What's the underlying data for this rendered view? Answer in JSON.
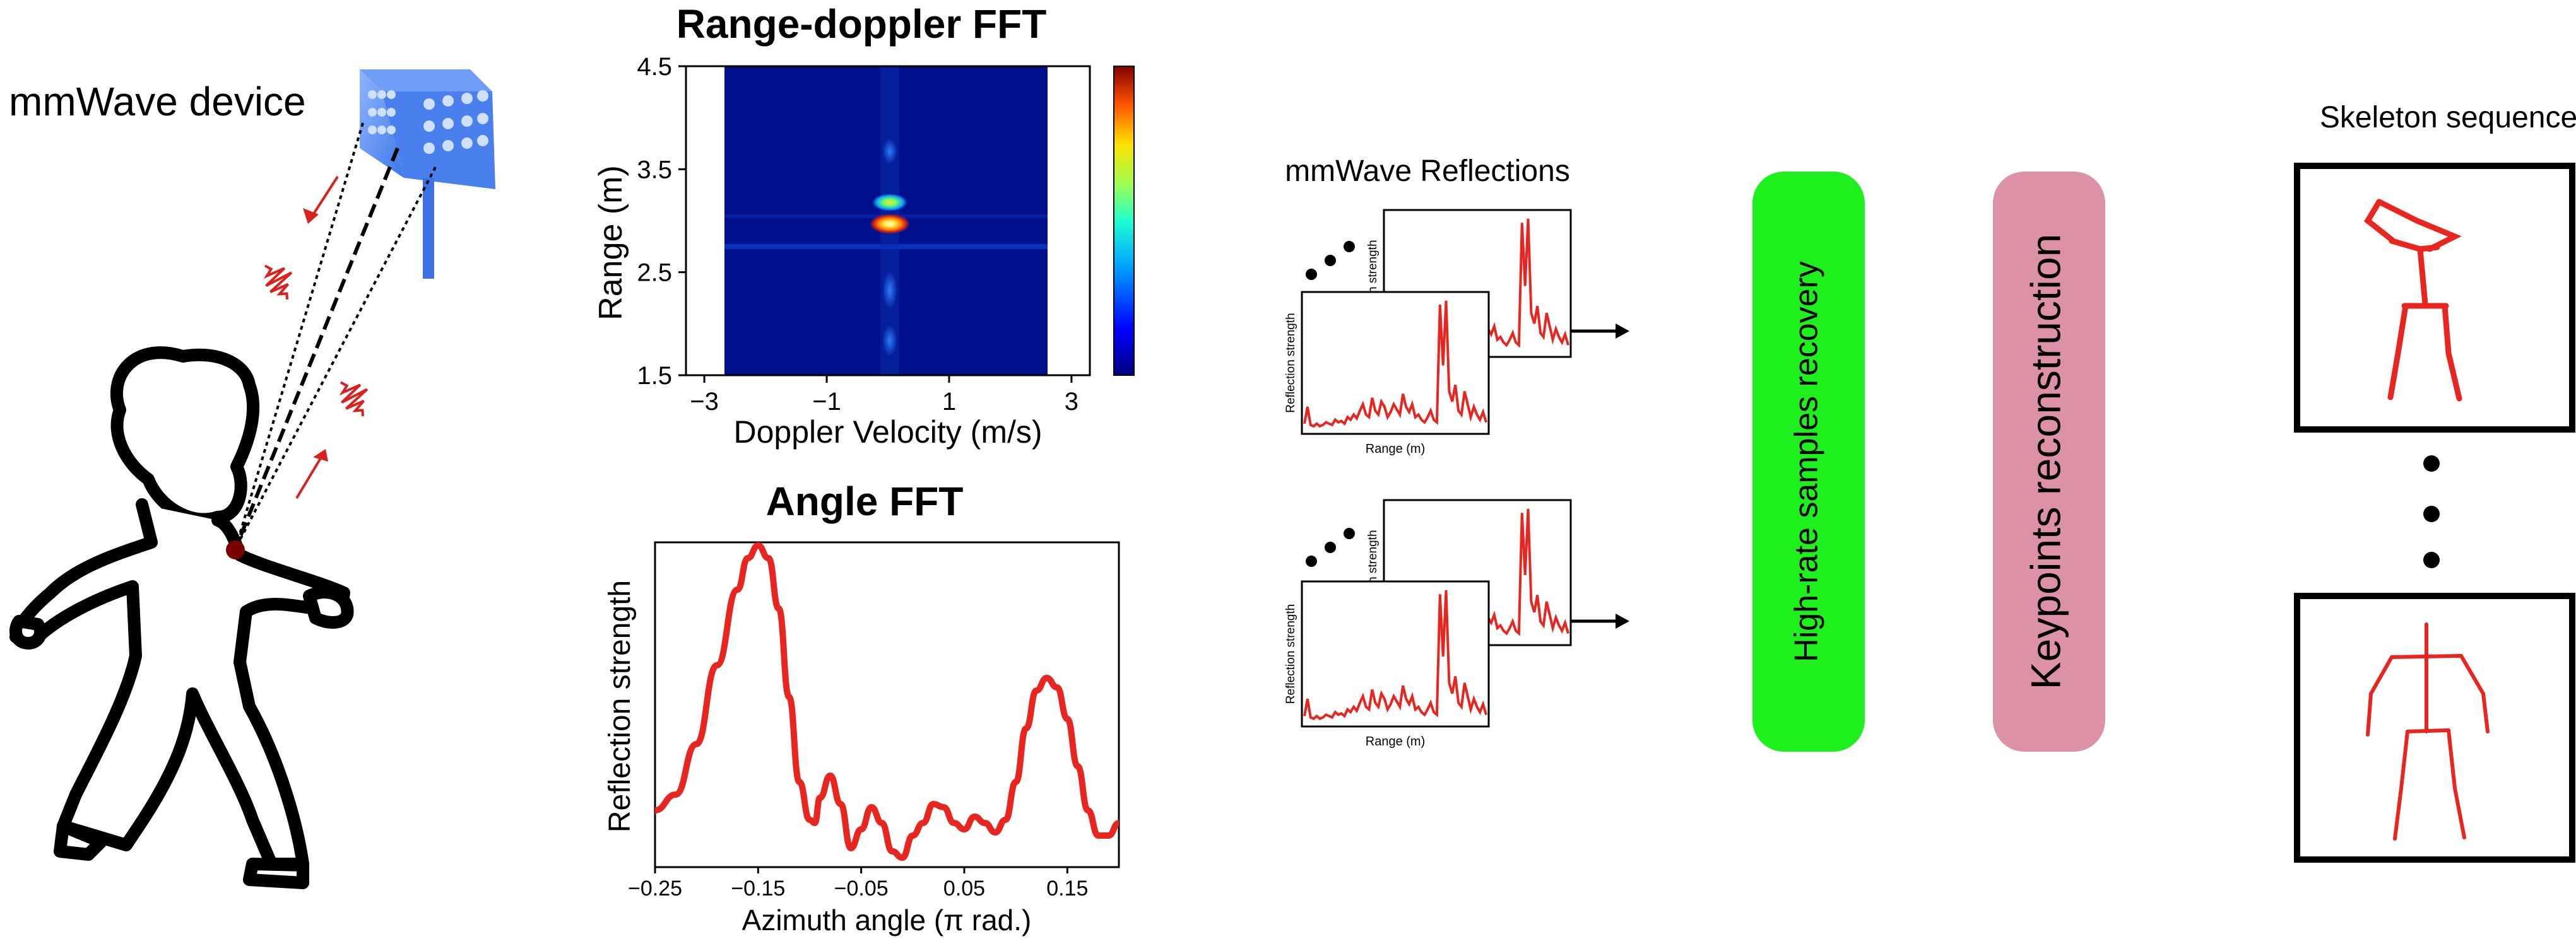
{
  "device": {
    "label": "mmWave device"
  },
  "colors": {
    "signal_red": "#d9221e",
    "device_blue": "#4f86f0",
    "heatmap_bg": "#00108c",
    "recovery_box": "#1ef01e",
    "reconstruction_box": "#dc91a6"
  },
  "range_doppler": {
    "title": "Range-doppler FFT",
    "xlabel": "Doppler Velocity (m/s)",
    "ylabel": "Range (m)",
    "xticks": [
      "−3",
      "−1",
      "1",
      "3"
    ],
    "yticks": [
      "4.5",
      "3.5",
      "2.5",
      "1.5"
    ]
  },
  "angle_fft": {
    "title": "Angle FFT",
    "xlabel": "Azimuth angle (π rad.)",
    "ylabel": "Reflection strength",
    "xticks": [
      "−0.25",
      "−0.15",
      "−0.05",
      "0.05",
      "0.15"
    ]
  },
  "reflections": {
    "title": "mmWave Reflections",
    "front_ylabel": "Reflection strength",
    "front_xlabel": "Range (m)",
    "back_ylabel_partial": "on strength",
    "back_xlabel_partial": "m)"
  },
  "pipeline": {
    "recovery_label": "High-rate samples recovery",
    "reconstruction_label": "Keypoints reconstruction"
  },
  "skeleton": {
    "title": "Skeleton sequence"
  },
  "chart_data": [
    {
      "type": "heatmap",
      "title": "Range-doppler FFT",
      "xlabel": "Doppler Velocity (m/s)",
      "ylabel": "Range (m)",
      "xlim": [
        -3.3,
        3.3
      ],
      "ylim": [
        1.5,
        4.5
      ],
      "xticks": [
        -3,
        -1,
        1,
        3
      ],
      "yticks": [
        1.5,
        2.5,
        3.5,
        4.5
      ],
      "hotspots": [
        {
          "velocity": 0.0,
          "range": 2.93,
          "intensity": 1.0
        },
        {
          "velocity": 0.0,
          "range": 3.15,
          "intensity": 0.75
        }
      ]
    },
    {
      "type": "line",
      "title": "Angle FFT",
      "xlabel": "Azimuth angle (π rad.)",
      "ylabel": "Reflection strength",
      "xlim": [
        -0.25,
        0.2
      ],
      "ylim": [
        0,
        1
      ],
      "xticks": [
        -0.25,
        -0.15,
        -0.05,
        0.05,
        0.15
      ],
      "x": [
        -0.25,
        -0.23,
        -0.21,
        -0.19,
        -0.17,
        -0.16,
        -0.15,
        -0.14,
        -0.13,
        -0.12,
        -0.11,
        -0.1,
        -0.095,
        -0.09,
        -0.08,
        -0.07,
        -0.06,
        -0.05,
        -0.04,
        -0.03,
        -0.02,
        -0.01,
        0.0,
        0.01,
        0.02,
        0.03,
        0.04,
        0.05,
        0.06,
        0.07,
        0.08,
        0.09,
        0.1,
        0.11,
        0.12,
        0.13,
        0.14,
        0.15,
        0.16,
        0.17,
        0.18,
        0.19,
        0.2
      ],
      "y": [
        0.16,
        0.21,
        0.37,
        0.62,
        0.86,
        0.96,
        1.0,
        0.96,
        0.8,
        0.52,
        0.25,
        0.13,
        0.12,
        0.2,
        0.27,
        0.18,
        0.04,
        0.1,
        0.17,
        0.12,
        0.03,
        0.01,
        0.08,
        0.12,
        0.18,
        0.17,
        0.12,
        0.1,
        0.14,
        0.12,
        0.09,
        0.13,
        0.25,
        0.42,
        0.54,
        0.58,
        0.55,
        0.45,
        0.3,
        0.16,
        0.08,
        0.08,
        0.12
      ]
    },
    {
      "type": "line",
      "title": "mmWave Reflections",
      "xlabel": "Range (m)",
      "ylabel": "Reflection strength",
      "x": [
        0,
        1,
        2,
        3,
        4,
        5,
        6,
        7,
        8,
        9,
        10,
        11,
        12,
        13,
        14,
        15,
        16,
        17,
        18,
        19,
        20,
        21,
        22,
        23,
        24,
        25,
        26,
        27,
        28,
        29,
        30,
        31,
        32,
        33,
        34,
        35,
        36,
        37,
        38,
        39,
        40,
        41,
        42,
        43,
        44,
        45,
        46,
        47,
        48,
        49,
        50,
        51,
        52,
        53,
        54,
        55,
        56,
        57,
        58,
        59
      ],
      "y": [
        0.05,
        0.18,
        0.04,
        0.03,
        0.05,
        0.03,
        0.04,
        0.06,
        0.05,
        0.04,
        0.08,
        0.06,
        0.07,
        0.05,
        0.1,
        0.08,
        0.12,
        0.09,
        0.15,
        0.2,
        0.12,
        0.1,
        0.25,
        0.15,
        0.12,
        0.22,
        0.18,
        0.1,
        0.14,
        0.2,
        0.16,
        0.12,
        0.28,
        0.18,
        0.14,
        0.2,
        0.1,
        0.12,
        0.08,
        0.06,
        0.1,
        0.15,
        0.08,
        0.06,
        0.97,
        0.5,
        1.0,
        0.3,
        0.22,
        0.35,
        0.15,
        0.12,
        0.3,
        0.2,
        0.1,
        0.18,
        0.12,
        0.08,
        0.14,
        0.06
      ]
    }
  ]
}
